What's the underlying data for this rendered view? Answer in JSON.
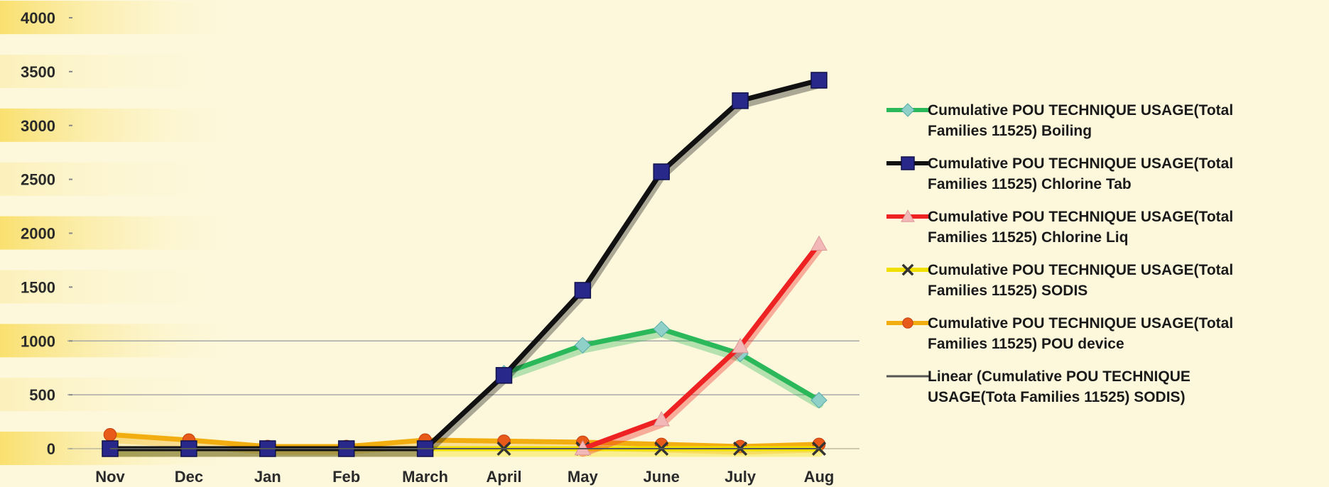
{
  "chart_data": {
    "type": "line",
    "title": "",
    "xlabel": "",
    "ylabel": "",
    "categories": [
      "Nov",
      "Dec",
      "Jan",
      "Feb",
      "March",
      "April",
      "May",
      "June",
      "July",
      "Aug"
    ],
    "ylim": [
      0,
      4000
    ],
    "yticks": [
      "4000",
      "3500",
      "3000",
      "2500",
      "2000",
      "1500",
      "1000",
      "500",
      "0"
    ],
    "ytick_values": [
      4000,
      3500,
      3000,
      2500,
      2000,
      1500,
      1000,
      500,
      0
    ],
    "gridlines": [
      500,
      1000
    ],
    "legend_position": "right",
    "series": [
      {
        "name": "Cumulative POU TECHNIQUE USAGE(Total Families 11525) Boiling",
        "name_lines": [
          "Cumulative  POU TECHNIQUE USAGE(Total",
          "Families 11525) Boiling"
        ],
        "color": "#2bb85a",
        "marker": "diamond",
        "marker_color": "#8fd0c9",
        "values": [
          null,
          null,
          null,
          null,
          null,
          700,
          960,
          1110,
          880,
          450
        ]
      },
      {
        "name": "Cumulative POU TECHNIQUE USAGE(Total Families 11525) Chlorine Tab",
        "name_lines": [
          "Cumulative  POU TECHNIQUE USAGE(Total",
          "Families 11525) Chlorine Tab"
        ],
        "color": "#111111",
        "marker": "square",
        "marker_color": "#28288a",
        "values": [
          0,
          0,
          0,
          0,
          0,
          680,
          1470,
          2570,
          3230,
          3420
        ]
      },
      {
        "name": "Cumulative POU TECHNIQUE USAGE(Total Families 11525) Chlorine Liq",
        "name_lines": [
          "Cumulative  POU TECHNIQUE USAGE(Total",
          "Families 11525) Chlorine Liq"
        ],
        "color": "#ee2222",
        "marker": "triangle",
        "marker_color": "#f2b8b8",
        "values": [
          null,
          null,
          null,
          null,
          null,
          null,
          0,
          270,
          950,
          1900
        ]
      },
      {
        "name": "Cumulative POU TECHNIQUE USAGE(Total Families 11525) SODIS",
        "name_lines": [
          "Cumulative  POU TECHNIQUE USAGE(Total",
          "Families 11525) SODIS"
        ],
        "color": "#f0e000",
        "marker": "x",
        "marker_color": "#333333",
        "values": [
          0,
          0,
          0,
          0,
          0,
          0,
          0,
          0,
          0,
          0
        ]
      },
      {
        "name": "Cumulative POU TECHNIQUE USAGE(Total Families 11525) POU device",
        "name_lines": [
          "Cumulative  POU TECHNIQUE USAGE(Total",
          "Families 11525) POU device"
        ],
        "color": "#f2ae10",
        "marker": "circle",
        "marker_color": "#e85a1a",
        "values": [
          130,
          80,
          20,
          20,
          80,
          70,
          60,
          40,
          20,
          40
        ]
      },
      {
        "name": "Linear (Cumulative POU TECHNIQUE USAGE(Total Families 11525) SODIS)",
        "name_lines": [
          "Linear (Cumulative  POU TECHNIQUE",
          "USAGE(Tota  Families 11525) SODIS)"
        ],
        "color": "#555555",
        "marker": "none",
        "marker_color": "#555555",
        "trendline": true,
        "values": [
          0,
          0,
          0,
          0,
          0,
          0,
          0,
          0,
          0,
          0
        ]
      }
    ]
  }
}
